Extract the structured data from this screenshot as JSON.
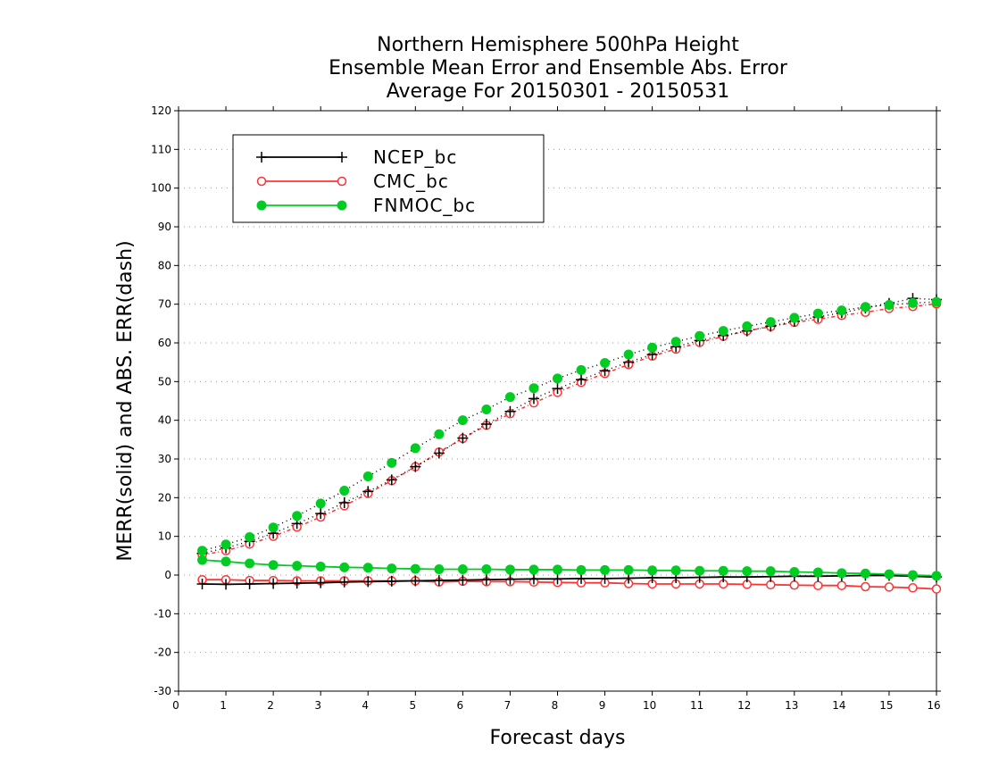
{
  "chart_data": {
    "type": "line",
    "title": [
      "Northern Hemisphere 500hPa Height",
      "Ensemble Mean Error and Ensemble Abs. Error",
      "Average For 20150301 - 20150531"
    ],
    "xlabel": "Forecast days",
    "ylabel": "MERR(solid) and ABS. ERR(dash)",
    "xlim": [
      0,
      16
    ],
    "ylim": [
      -30,
      120
    ],
    "xticks": [
      "0",
      "1",
      "2",
      "3",
      "4",
      "5",
      "6",
      "7",
      "8",
      "9",
      "10",
      "11",
      "12",
      "13",
      "14",
      "15",
      "16"
    ],
    "yticks": [
      "120",
      "110",
      "100",
      "90",
      "80",
      "70",
      "60",
      "50",
      "40",
      "30",
      "20",
      "10",
      "0",
      "-10",
      "-20",
      "-30"
    ],
    "grid": true,
    "legend_position": "top-left",
    "x": [
      0.5,
      1,
      1.5,
      2,
      2.5,
      3,
      3.5,
      4,
      4.5,
      5,
      5.5,
      6,
      6.5,
      7,
      7.5,
      8,
      8.5,
      9,
      9.5,
      10,
      10.5,
      11,
      11.5,
      12,
      12.5,
      13,
      13.5,
      14,
      14.5,
      15,
      15.5,
      16
    ],
    "series": [
      {
        "name": "NCEP_bc",
        "color": "#000000",
        "marker": "plus",
        "merr": [
          -2.3,
          -2.4,
          -2.3,
          -2.2,
          -2.1,
          -2.0,
          -1.8,
          -1.7,
          -1.6,
          -1.5,
          -1.4,
          -1.3,
          -1.2,
          -1.1,
          -1.0,
          -1.0,
          -0.9,
          -0.9,
          -0.8,
          -0.7,
          -0.7,
          -0.6,
          -0.5,
          -0.5,
          -0.4,
          -0.3,
          -0.3,
          -0.2,
          -0.1,
          -0.1,
          -0.3,
          -0.5
        ],
        "abs_err": [
          5.6,
          7.0,
          8.7,
          10.8,
          13.3,
          15.9,
          18.7,
          21.6,
          24.6,
          28.0,
          31.5,
          35.4,
          39.0,
          42.3,
          45.6,
          48.2,
          50.5,
          52.8,
          55.0,
          57.0,
          59.0,
          60.6,
          61.9,
          63.1,
          64.3,
          65.6,
          66.7,
          67.8,
          69.0,
          70.2,
          71.5,
          71.2
        ]
      },
      {
        "name": "CMC_bc",
        "color": "#ff3333",
        "marker": "open-circle",
        "merr": [
          -1.2,
          -1.2,
          -1.4,
          -1.4,
          -1.5,
          -1.5,
          -1.5,
          -1.5,
          -1.5,
          -1.5,
          -1.8,
          -1.6,
          -1.7,
          -1.7,
          -1.8,
          -1.9,
          -2.0,
          -2.0,
          -2.2,
          -2.3,
          -2.3,
          -2.3,
          -2.3,
          -2.4,
          -2.5,
          -2.6,
          -2.7,
          -2.7,
          -3.0,
          -3.1,
          -3.3,
          -3.6
        ],
        "abs_err": [
          5.2,
          6.3,
          8.0,
          10.0,
          12.4,
          15.0,
          17.9,
          21.1,
          24.4,
          28.0,
          31.8,
          35.3,
          38.7,
          41.7,
          44.5,
          47.2,
          49.8,
          52.1,
          54.4,
          56.6,
          58.4,
          60.1,
          61.7,
          63.1,
          64.2,
          65.3,
          66.1,
          67.1,
          67.9,
          68.9,
          69.4,
          70.1
        ]
      },
      {
        "name": "FNMOC_bc",
        "color": "#00cc22",
        "marker": "filled-circle",
        "merr": [
          3.9,
          3.5,
          3.0,
          2.6,
          2.4,
          2.2,
          2.0,
          1.9,
          1.7,
          1.6,
          1.5,
          1.5,
          1.5,
          1.4,
          1.4,
          1.4,
          1.3,
          1.3,
          1.3,
          1.2,
          1.2,
          1.1,
          1.1,
          1.0,
          1.0,
          0.8,
          0.7,
          0.5,
          0.4,
          0.2,
          0.0,
          -0.2
        ],
        "abs_err": [
          6.3,
          7.9,
          9.8,
          12.3,
          15.3,
          18.5,
          21.8,
          25.5,
          29.0,
          32.8,
          36.4,
          40.0,
          42.8,
          46.0,
          48.3,
          50.8,
          53.0,
          54.8,
          57.0,
          58.8,
          60.3,
          61.8,
          63.1,
          64.3,
          65.4,
          66.5,
          67.6,
          68.4,
          69.3,
          69.8,
          70.3,
          70.6
        ]
      }
    ]
  }
}
